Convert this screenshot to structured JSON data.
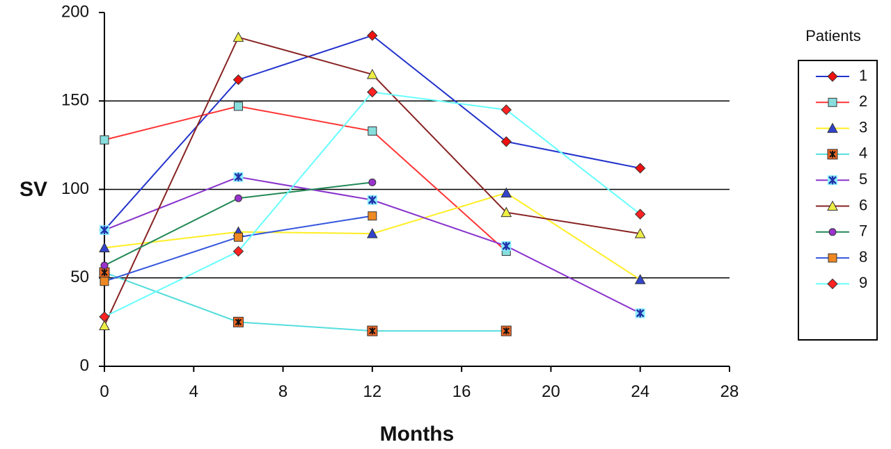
{
  "chart_data": {
    "type": "line",
    "xlabel": "Months",
    "ylabel": "SV",
    "xlim": [
      0,
      28
    ],
    "ylim": [
      0,
      200
    ],
    "x_ticks": [
      0,
      4,
      8,
      12,
      16,
      20,
      24,
      28
    ],
    "y_ticks": [
      0,
      50,
      100,
      150,
      200
    ],
    "grid": "horizontal",
    "legend": {
      "title": "Patients",
      "placement": "right"
    },
    "series": [
      {
        "name": "1",
        "color": "#2233cc",
        "marker": "diamond",
        "marker_color": "#ee1111",
        "x": [
          0,
          6,
          12,
          18,
          24
        ],
        "y": [
          77,
          162,
          187,
          127,
          112
        ]
      },
      {
        "name": "2",
        "color": "#ff3333",
        "marker": "square",
        "marker_color": "#88dddd",
        "x": [
          0,
          6,
          12,
          18
        ],
        "y": [
          128,
          147,
          133,
          65
        ]
      },
      {
        "name": "3",
        "color": "#ffee22",
        "marker": "triangle",
        "marker_color": "#3344cc",
        "x": [
          0,
          6,
          12,
          18,
          24
        ],
        "y": [
          67,
          76,
          75,
          98,
          49
        ]
      },
      {
        "name": "4",
        "color": "#55dddd",
        "marker": "x-square",
        "marker_color": "#ee6622",
        "x": [
          0,
          6,
          12,
          18
        ],
        "y": [
          53,
          25,
          20,
          20
        ]
      },
      {
        "name": "5",
        "color": "#8833cc",
        "marker": "asterisk",
        "marker_color": "#2233aa",
        "x": [
          0,
          6,
          12,
          18,
          24
        ],
        "y": [
          77,
          107,
          94,
          68,
          30
        ]
      },
      {
        "name": "6",
        "color": "#882222",
        "marker": "triangle",
        "marker_color": "#eeee44",
        "x": [
          0,
          6,
          12,
          18,
          24
        ],
        "y": [
          23,
          186,
          165,
          87,
          75
        ]
      },
      {
        "name": "7",
        "color": "#228855",
        "marker": "circle",
        "marker_color": "#9933cc",
        "x": [
          0,
          6,
          12
        ],
        "y": [
          57,
          95,
          104
        ]
      },
      {
        "name": "8",
        "color": "#3355dd",
        "marker": "square",
        "marker_color": "#ee8822",
        "x": [
          0,
          6,
          12
        ],
        "y": [
          48,
          73,
          85
        ]
      },
      {
        "name": "9",
        "color": "#66ffff",
        "marker": "diamond",
        "marker_color": "#ff2222",
        "x": [
          0,
          6,
          12,
          18,
          24
        ],
        "y": [
          28,
          65,
          155,
          145,
          86
        ]
      }
    ]
  }
}
